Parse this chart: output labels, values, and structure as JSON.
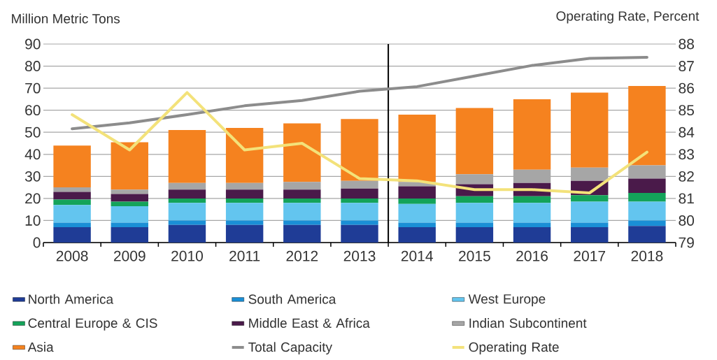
{
  "chart_data": {
    "type": "bar",
    "stacked": true,
    "ylabel": "Million Metric Tons",
    "y2label": "Operating Rate,  Percent",
    "x": [
      2008,
      2009,
      2010,
      2011,
      2012,
      2013,
      2014,
      2015,
      2016,
      2017,
      2018
    ],
    "xlim": [
      2007.5,
      2018.5
    ],
    "xticks": [
      2008,
      2009,
      2010,
      2011,
      2012,
      2013,
      2014,
      2015,
      2016,
      2017,
      2018
    ],
    "ref_lines": [
      {
        "axis": "x",
        "value": 2013.5,
        "color": "#000000"
      }
    ],
    "ylim": [
      0,
      90
    ],
    "yticks": [
      0,
      10,
      20,
      30,
      40,
      50,
      60,
      70,
      80,
      90
    ],
    "y2lim": [
      79,
      88
    ],
    "y2ticks": [
      79,
      80,
      81,
      82,
      83,
      84,
      85,
      86,
      87,
      88
    ],
    "grid": "y",
    "legend": "bottom",
    "marker": "none",
    "line_style": "solid",
    "series": [
      {
        "name": "North America",
        "color": "#1f3c96",
        "values": [
          7,
          7,
          8,
          8,
          8,
          8,
          7,
          7,
          7,
          7,
          7.5
        ]
      },
      {
        "name": "South America",
        "color": "#1a8fd6",
        "values": [
          2,
          2,
          2,
          2,
          2,
          2,
          2,
          2,
          2,
          2,
          2.5
        ]
      },
      {
        "name": "West Europe",
        "color": "#63c5ef",
        "values": [
          8,
          7.5,
          8,
          8,
          8,
          8,
          8.5,
          9,
          9,
          9.5,
          8.5
        ]
      },
      {
        "name": "Central  Europe & CIS",
        "color": "#14a35a",
        "values": [
          2.5,
          2,
          2,
          2,
          2,
          2,
          2.5,
          3,
          3,
          3,
          4
        ]
      },
      {
        "name": "Middle East & Africa",
        "color": "#4a1a4a",
        "values": [
          3.5,
          3.5,
          4,
          4,
          4,
          4.5,
          5.5,
          5.5,
          6,
          6.5,
          6.5
        ]
      },
      {
        "name": "Indian Subcontinent",
        "color": "#a6a6a6",
        "values": [
          2,
          2,
          3,
          3,
          3.5,
          3.5,
          2,
          4.5,
          6,
          6,
          6
        ]
      },
      {
        "name": "Asia",
        "color": "#f5821f",
        "values": [
          19,
          21.5,
          24,
          25,
          26.5,
          28,
          30.5,
          30,
          32,
          34,
          36
        ]
      },
      {
        "name": "Total Capacity",
        "type": "line",
        "color": "#8c8c8c",
        "values": [
          51.6,
          54.3,
          58,
          62,
          64.4,
          68.6,
          70.7,
          75.5,
          80.3,
          83.5,
          84
        ]
      },
      {
        "name": "Operating Rate",
        "type": "line",
        "axis": "y2",
        "color": "#f3e27a",
        "values": [
          84.8,
          83.2,
          85.8,
          83.2,
          83.5,
          81.9,
          81.8,
          81.4,
          81.4,
          81.25,
          83.1
        ]
      }
    ]
  }
}
